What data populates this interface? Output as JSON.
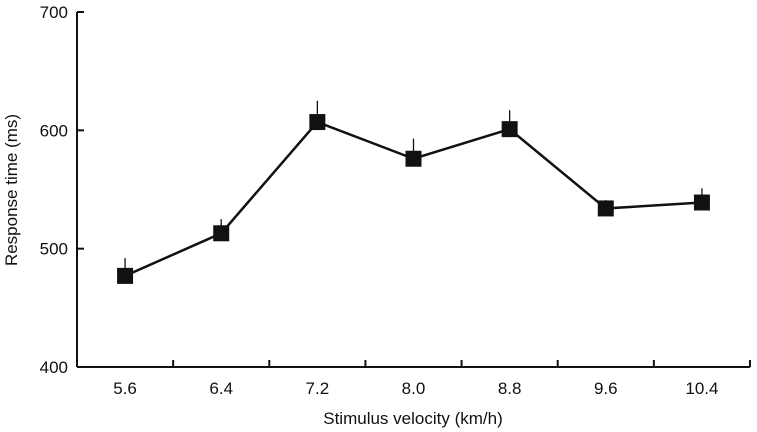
{
  "chart_data": {
    "type": "line",
    "title": "",
    "xlabel": "Stimulus velocity (km/h)",
    "ylabel": "Response time (ms)",
    "categories": [
      "5.6",
      "6.4",
      "7.2",
      "8.0",
      "8.8",
      "9.6",
      "10.4"
    ],
    "ylim": [
      400,
      700
    ],
    "yticks": [
      "400",
      "500",
      "600",
      "700"
    ],
    "grid": false,
    "legend": "none",
    "series": [
      {
        "values": [
          477,
          513,
          607,
          576,
          601,
          534,
          539
        ],
        "error_upper": [
          492,
          525,
          625,
          593,
          617,
          541,
          551
        ]
      }
    ],
    "colors": {
      "line": "#111111",
      "marker": "#111111",
      "axis": "#111111"
    }
  }
}
